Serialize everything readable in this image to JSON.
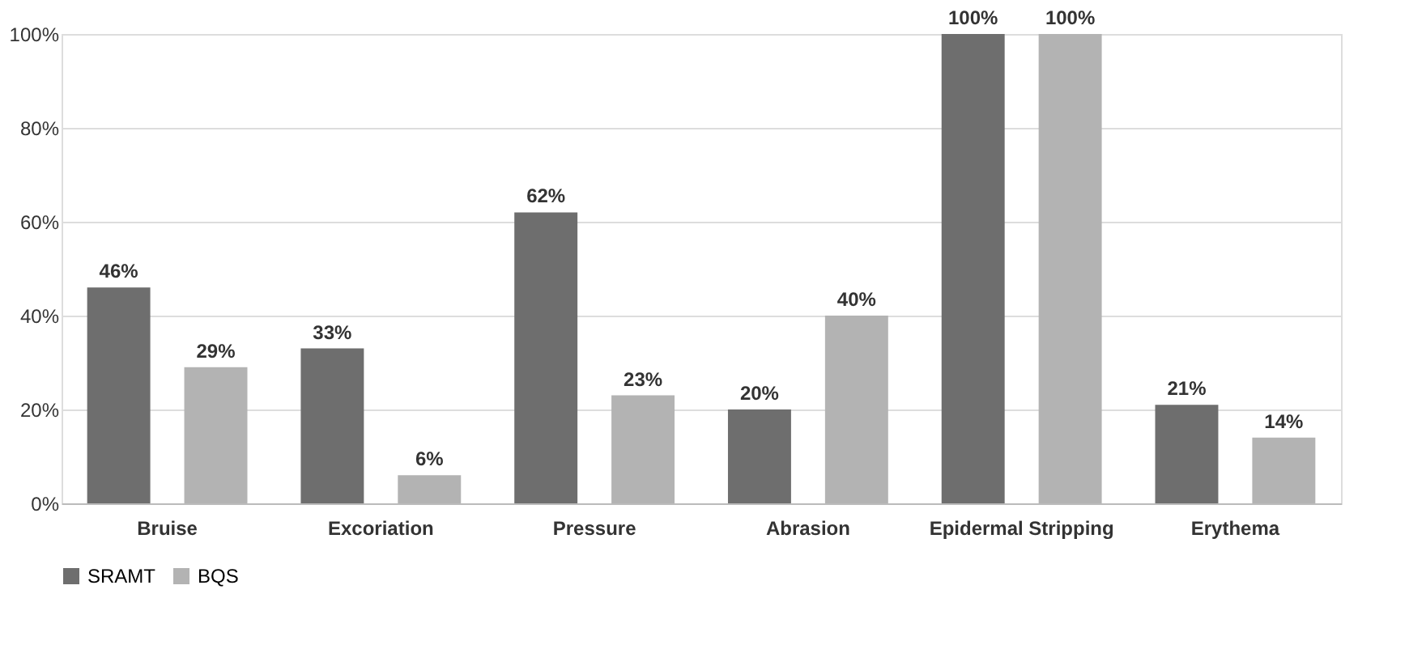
{
  "chart_data": {
    "type": "bar",
    "categories": [
      "Bruise",
      "Excoriation",
      "Pressure",
      "Abrasion",
      "Epidermal Stripping",
      "Erythema"
    ],
    "series": [
      {
        "name": "SRAMT",
        "color": "#6e6e6e",
        "values": [
          46,
          33,
          62,
          20,
          100,
          21
        ],
        "value_labels": [
          "46%",
          "33%",
          "62%",
          "20%",
          "100%",
          "21%"
        ]
      },
      {
        "name": "BQS",
        "color": "#b3b3b3",
        "values": [
          29,
          6,
          23,
          40,
          100,
          14
        ],
        "value_labels": [
          "29%",
          "6%",
          "23%",
          "40%",
          "100%",
          "14%"
        ]
      }
    ],
    "ylim": [
      0,
      100
    ],
    "yticks": [
      {
        "value": 0,
        "label": "0%"
      },
      {
        "value": 20,
        "label": "20%"
      },
      {
        "value": 40,
        "label": "40%"
      },
      {
        "value": 60,
        "label": "60%"
      },
      {
        "value": 80,
        "label": "80%"
      },
      {
        "value": 100,
        "label": "100%"
      }
    ],
    "grid": "y",
    "legend": "bottom"
  }
}
